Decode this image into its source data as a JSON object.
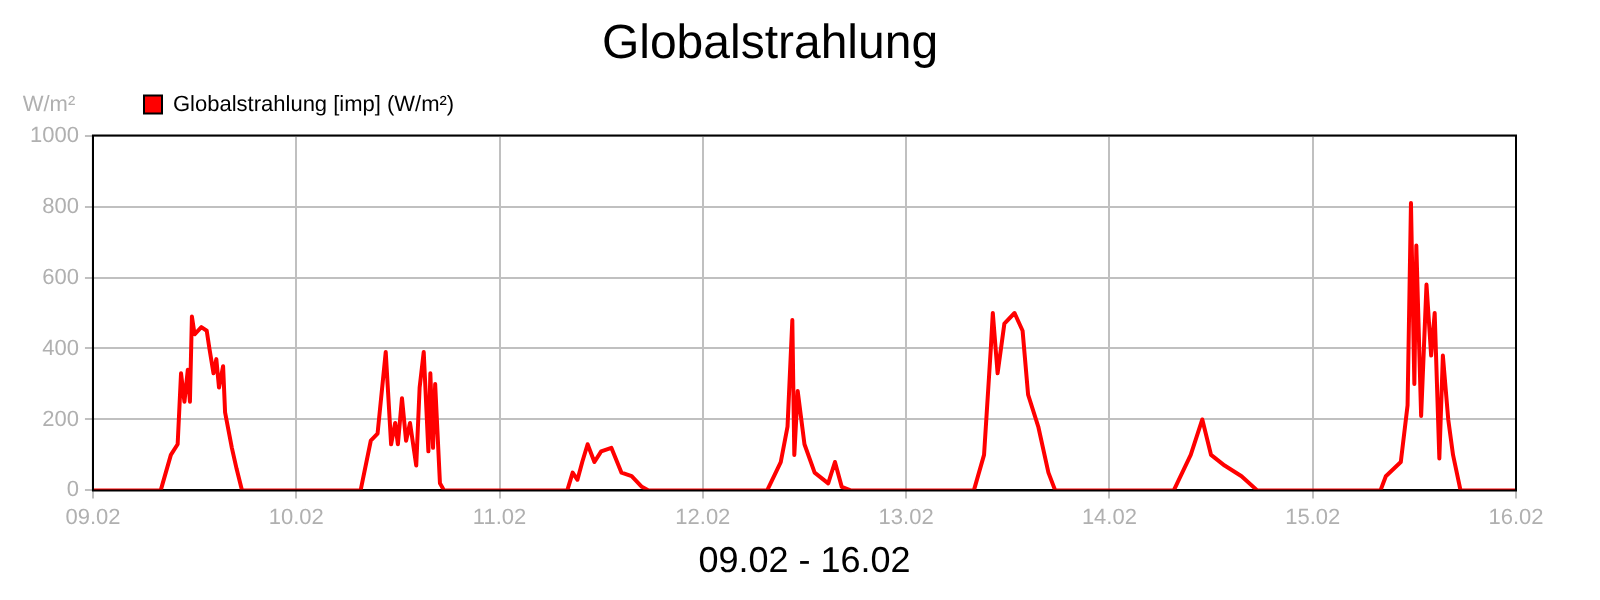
{
  "chart_data": {
    "type": "line",
    "title": "Globalstrahlung",
    "xlabel": "09.02 - 16.02",
    "ylabel": "W/m²",
    "x": [
      "--02-09T00:00",
      "--02-09T08:00",
      "--02-09T09:12",
      "--02-09T10:00",
      "--02-09T10:24",
      "--02-09T10:48",
      "--02-09T11:12",
      "--02-09T11:27",
      "--02-09T11:41",
      "--02-09T12:00",
      "--02-09T12:48",
      "--02-09T13:26",
      "--02-09T13:45",
      "--02-09T14:14",
      "--02-09T14:34",
      "--02-09T14:53",
      "--02-09T15:22",
      "--02-09T15:36",
      "--02-09T16:24",
      "--02-09T16:58",
      "--02-09T17:36",
      "--02-10T07:36",
      "--02-10T08:48",
      "--02-10T09:36",
      "--02-10T10:34",
      "--02-10T11:12",
      "--02-10T11:41",
      "--02-10T12:00",
      "--02-10T12:29",
      "--02-10T12:58",
      "--02-10T13:26",
      "--02-10T14:10",
      "--02-10T14:34",
      "--02-10T15:03",
      "--02-10T15:36",
      "--02-10T15:50",
      "--02-10T16:09",
      "--02-10T16:24",
      "--02-10T16:58",
      "--02-10T17:27",
      "--02-11T08:00",
      "--02-11T08:38",
      "--02-11T09:12",
      "--02-11T09:46",
      "--02-11T10:24",
      "--02-11T11:12",
      "--02-11T12:00",
      "--02-11T13:12",
      "--02-11T14:24",
      "--02-11T15:36",
      "--02-11T16:48",
      "--02-11T17:36",
      "--02-12T07:36",
      "--02-12T09:12",
      "--02-12T10:00",
      "--02-12T10:34",
      "--02-12T10:48",
      "--02-12T11:12",
      "--02-12T12:00",
      "--02-12T13:12",
      "--02-12T14:48",
      "--02-12T15:36",
      "--02-12T16:24",
      "--02-12T17:27",
      "--02-13T08:00",
      "--02-13T09:12",
      "--02-13T10:00",
      "--02-13T10:14",
      "--02-13T10:48",
      "--02-13T11:36",
      "--02-13T12:48",
      "--02-13T13:45",
      "--02-13T14:24",
      "--02-13T15:36",
      "--02-13T16:48",
      "--02-13T17:36",
      "--02-14T07:36",
      "--02-14T09:36",
      "--02-14T10:58",
      "--02-14T12:00",
      "--02-14T13:36",
      "--02-14T15:36",
      "--02-14T17:27",
      "--02-15T08:00",
      "--02-15T08:38",
      "--02-15T10:24",
      "--02-15T11:12",
      "--02-15T11:36",
      "--02-15T12:00",
      "--02-15T12:14",
      "--02-15T12:48",
      "--02-15T13:26",
      "--02-15T13:59",
      "--02-15T14:24",
      "--02-15T14:57",
      "--02-15T15:22",
      "--02-15T16:00",
      "--02-15T16:34",
      "--02-15T17:27",
      "--02-16T00:00"
    ],
    "series": [
      {
        "name": "Globalstrahlung [imp] (W/m²)",
        "color": "#ff0000",
        "values": [
          0,
          0,
          100,
          130,
          330,
          250,
          340,
          250,
          490,
          440,
          460,
          450,
          400,
          330,
          370,
          290,
          350,
          220,
          120,
          60,
          0,
          0,
          140,
          160,
          390,
          130,
          190,
          130,
          260,
          140,
          190,
          70,
          290,
          390,
          110,
          330,
          120,
          300,
          20,
          0,
          0,
          50,
          30,
          80,
          130,
          80,
          110,
          120,
          50,
          40,
          10,
          0,
          0,
          80,
          180,
          480,
          100,
          280,
          130,
          50,
          20,
          80,
          10,
          0,
          0,
          100,
          400,
          500,
          330,
          470,
          500,
          450,
          270,
          180,
          50,
          0,
          0,
          100,
          200,
          100,
          70,
          40,
          0,
          0,
          40,
          80,
          240,
          810,
          300,
          690,
          210,
          580,
          380,
          500,
          90,
          380,
          200,
          100,
          0,
          0
        ]
      }
    ],
    "xlim": [
      "--02-09",
      "--02-16"
    ],
    "xticks": [
      {
        "value": "--02-09",
        "label": "09.02"
      },
      {
        "value": "--02-10",
        "label": "10.02"
      },
      {
        "value": "--02-11",
        "label": "11.02"
      },
      {
        "value": "--02-12",
        "label": "12.02"
      },
      {
        "value": "--02-13",
        "label": "13.02"
      },
      {
        "value": "--02-14",
        "label": "14.02"
      },
      {
        "value": "--02-15",
        "label": "15.02"
      },
      {
        "value": "--02-16",
        "label": "16.02"
      }
    ],
    "ylim": [
      0,
      1000
    ],
    "yticks": [
      0,
      200,
      400,
      600,
      800,
      1000
    ],
    "grid": true,
    "legend": "top left",
    "marker": "none",
    "line_style": "solid"
  }
}
